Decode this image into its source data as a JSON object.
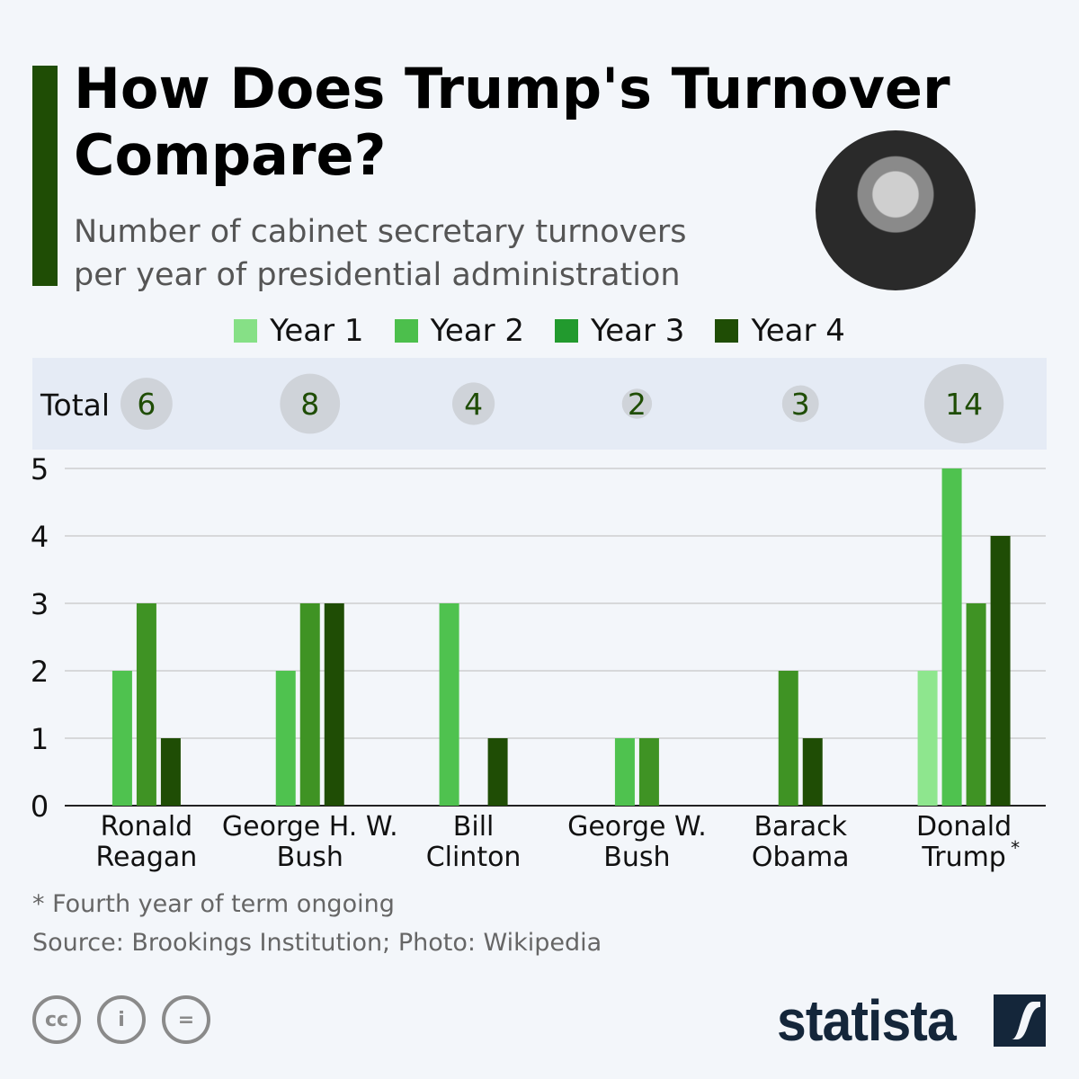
{
  "title": [
    "How Does Trump's Turnover",
    "Compare?"
  ],
  "subtitle": [
    "Number of cabinet secretary turnovers",
    "per year of presidential administration"
  ],
  "footnote": "* Fourth year of term ongoing",
  "source": "Source: Brookings Institution; Photo: Wikipedia",
  "brand": "statista",
  "license_icons": [
    "cc-icon",
    "attribution-icon",
    "no-derivatives-icon"
  ],
  "license_glyphs": [
    "cc",
    "i",
    "="
  ],
  "chart_data": {
    "type": "bar",
    "title": "How Does Trump's Turnover Compare?",
    "totals_label": "Total",
    "categories": [
      [
        "Ronald",
        "Reagan"
      ],
      [
        "George H. W.",
        "Bush"
      ],
      [
        "Bill",
        "Clinton"
      ],
      [
        "George W.",
        "Bush"
      ],
      [
        "Barack",
        "Obama"
      ],
      [
        "Donald",
        "Trump"
      ]
    ],
    "category_marks": [
      "",
      "",
      "",
      "",
      "",
      "*"
    ],
    "totals": [
      6,
      8,
      4,
      2,
      3,
      14
    ],
    "series": [
      {
        "name": "Year 1",
        "color": "#8ee68e",
        "legend_color": "#86e086",
        "values": [
          null,
          null,
          null,
          null,
          null,
          2
        ]
      },
      {
        "name": "Year 2",
        "color": "#4fc24f",
        "legend_color": "#4cbf4c",
        "values": [
          2,
          2,
          3,
          1,
          null,
          5
        ]
      },
      {
        "name": "Year 3",
        "color": "#3f9324",
        "legend_color": "#229a2e",
        "values": [
          3,
          3,
          0,
          1,
          2,
          3
        ]
      },
      {
        "name": "Year 4",
        "color": "#1f4d05",
        "legend_color": "#1f4d05",
        "values": [
          1,
          3,
          1,
          null,
          1,
          4
        ]
      }
    ],
    "ylim": [
      0,
      5
    ],
    "yticks": [
      0,
      1,
      2,
      3,
      4,
      5
    ],
    "grid": true,
    "legend_position": "top-center",
    "xlabel": "",
    "ylabel": ""
  }
}
